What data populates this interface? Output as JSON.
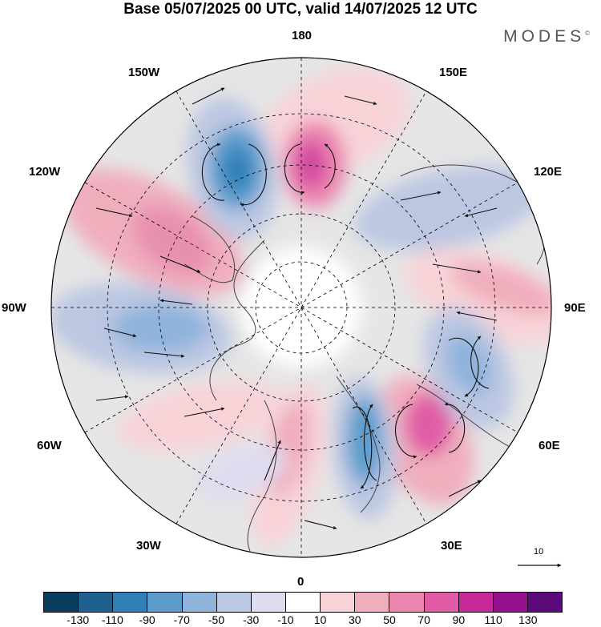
{
  "title": "Base 05/07/2025 00 UTC, valid 14/07/2025 12 UTC",
  "brand": "MODES",
  "brand_mark": "©",
  "longitude_labels": {
    "n180": "180",
    "e150": "150E",
    "e120": "120E",
    "e90": "90E",
    "e60": "60E",
    "e30": "30E",
    "zero": "0",
    "w30": "30W",
    "w60": "60W",
    "w90": "90W",
    "w120": "120W",
    "w150": "150W"
  },
  "reference_vector": {
    "label": "10"
  },
  "colorbar": {
    "colors": [
      "#0a3d5e",
      "#1d5f8e",
      "#2f7fb8",
      "#5c9ccd",
      "#8fb4dc",
      "#bcc7e2",
      "#dedcee",
      "#ffffff",
      "#f7d3d8",
      "#f0aebd",
      "#ec85b0",
      "#e05da6",
      "#c8279a",
      "#960f8f",
      "#5b0a7a"
    ],
    "ticks": [
      "-130",
      "-110",
      "-90",
      "-70",
      "-50",
      "-30",
      "-10",
      "10",
      "30",
      "50",
      "70",
      "90",
      "110",
      "130"
    ]
  },
  "colors": {
    "neutral_band": "#e6e6e6",
    "land_outline": "#444444",
    "graticule": "#000000"
  }
}
